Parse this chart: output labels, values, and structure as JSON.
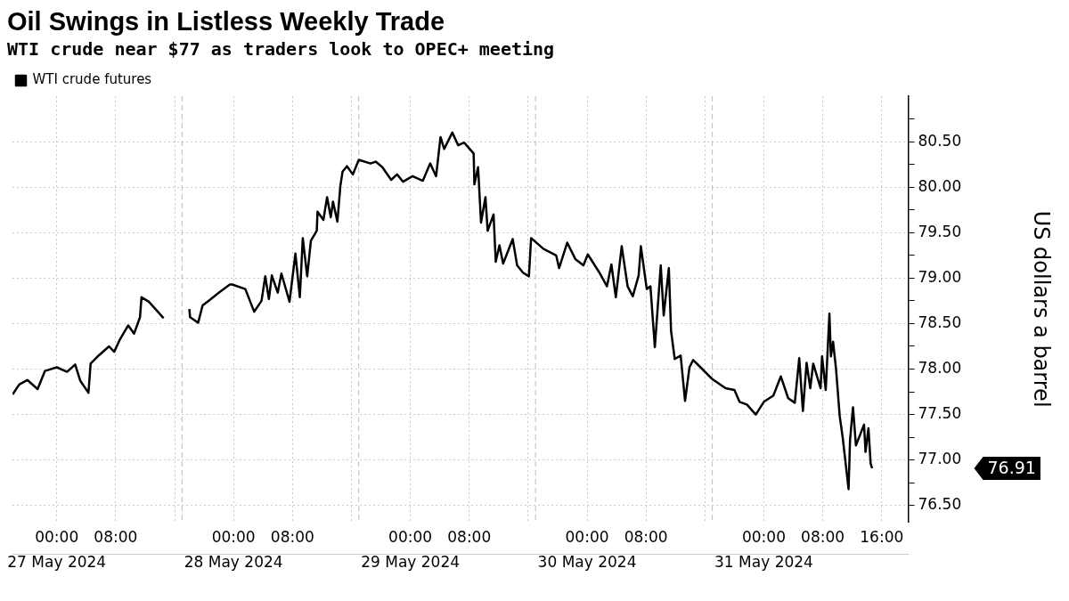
{
  "chart_data": {
    "type": "line",
    "title": "Oil Swings in Listless Weekly Trade",
    "subtitle": "WTI crude near $77 as traders look to OPEC+ meeting",
    "ylabel": "US dollars a barrel",
    "legend": "top left",
    "grid": true,
    "marker": "none",
    "line_style": "solid",
    "xlim": [
      "2024-05-26T18:00",
      "2024-05-31T19:36"
    ],
    "xticks": [
      {
        "value": "2024-05-27T00:00",
        "label": "00:00"
      },
      {
        "value": "2024-05-27T08:00",
        "label": "08:00"
      },
      {
        "value": "2024-05-27T16:00",
        "label": null
      },
      {
        "value": "2024-05-28T00:00",
        "label": "00:00"
      },
      {
        "value": "2024-05-28T08:00",
        "label": "08:00"
      },
      {
        "value": "2024-05-28T16:00",
        "label": null
      },
      {
        "value": "2024-05-29T00:00",
        "label": "00:00"
      },
      {
        "value": "2024-05-29T08:00",
        "label": "08:00"
      },
      {
        "value": "2024-05-29T16:00",
        "label": null
      },
      {
        "value": "2024-05-30T00:00",
        "label": "00:00"
      },
      {
        "value": "2024-05-30T08:00",
        "label": "08:00"
      },
      {
        "value": "2024-05-30T16:00",
        "label": null
      },
      {
        "value": "2024-05-31T00:00",
        "label": "00:00"
      },
      {
        "value": "2024-05-31T08:00",
        "label": "08:00"
      },
      {
        "value": "2024-05-31T16:00",
        "label": "16:00"
      }
    ],
    "x2lim": [
      "2024-05-26T18:00",
      "2024-05-31T19:36"
    ],
    "x2ticks": [
      {
        "value": "2024-05-27",
        "label": "27 May 2024"
      },
      {
        "value": "2024-05-28",
        "label": "28 May 2024"
      },
      {
        "value": "2024-05-29",
        "label": "29 May 2024"
      },
      {
        "value": "2024-05-30",
        "label": "30 May 2024"
      },
      {
        "value": "2024-05-31",
        "label": "31 May 2024"
      }
    ],
    "ylim": [
      76.32,
      81
    ],
    "yticks": [
      {
        "value": 76.5,
        "label": "76.50"
      },
      {
        "value": 76.75,
        "label": null
      },
      {
        "value": 77,
        "label": "77.00"
      },
      {
        "value": 77.25,
        "label": null
      },
      {
        "value": 77.5,
        "label": "77.50"
      },
      {
        "value": 77.75,
        "label": null
      },
      {
        "value": 78,
        "label": "78.00"
      },
      {
        "value": 78.25,
        "label": null
      },
      {
        "value": 78.5,
        "label": "78.50"
      },
      {
        "value": 78.75,
        "label": null
      },
      {
        "value": 79,
        "label": "79.00"
      },
      {
        "value": 79.25,
        "label": null
      },
      {
        "value": 79.5,
        "label": "79.50"
      },
      {
        "value": 79.75,
        "label": null
      },
      {
        "value": 80,
        "label": "80.00"
      },
      {
        "value": 80.25,
        "label": null
      },
      {
        "value": 80.5,
        "label": "80.50"
      },
      {
        "value": 80.75,
        "label": null
      }
    ],
    "ref_lines": [
      {
        "axis": "x",
        "value": "2024-05-27T17:00",
        "line_style": "dashed",
        "color": "#bbbbbb"
      },
      {
        "axis": "x",
        "value": "2024-05-28T17:00",
        "line_style": "dashed",
        "color": "#bbbbbb"
      },
      {
        "axis": "x",
        "value": "2024-05-29T17:00",
        "line_style": "dashed",
        "color": "#bbbbbb"
      },
      {
        "axis": "x",
        "value": "2024-05-30T17:00",
        "line_style": "dashed",
        "color": "#bbbbbb"
      }
    ],
    "annotations": [
      "76.91"
    ],
    "series": [
      {
        "name": "WTI crude futures",
        "color": "#000000",
        "x": [
          "2024-05-26T18:00",
          "2024-05-26T18:54",
          "2024-05-26T20:00",
          "2024-05-26T21:24",
          "2024-05-26T22:24",
          "2024-05-27T00:00",
          "2024-05-27T01:24",
          "2024-05-27T02:30",
          "2024-05-27T03:12",
          "2024-05-27T04:18",
          "2024-05-27T04:36",
          "2024-05-27T05:42",
          "2024-05-27T07:06",
          "2024-05-27T07:48",
          "2024-05-27T08:36",
          "2024-05-27T09:42",
          "2024-05-27T10:30",
          "2024-05-27T11:18",
          "2024-05-27T11:30",
          "2024-05-27T12:30",
          "2024-05-27T13:24",
          "2024-05-27T14:30",
          "2024-05-27T16:00",
          "2024-05-27T18:00",
          "2024-05-27T18:06",
          "2024-05-27T19:12",
          "2024-05-27T19:48",
          "2024-05-27T20:36",
          "2024-05-27T22:00",
          "2024-05-27T23:30",
          "2024-05-27T23:48",
          "2024-05-28T01:36",
          "2024-05-28T02:48",
          "2024-05-28T03:48",
          "2024-05-28T04:18",
          "2024-05-28T04:48",
          "2024-05-28T05:12",
          "2024-05-28T06:00",
          "2024-05-28T06:30",
          "2024-05-28T07:36",
          "2024-05-28T08:24",
          "2024-05-28T09:00",
          "2024-05-28T09:24",
          "2024-05-28T10:00",
          "2024-05-28T10:30",
          "2024-05-28T11:18",
          "2024-05-28T11:24",
          "2024-05-28T12:12",
          "2024-05-28T12:42",
          "2024-05-28T13:12",
          "2024-05-28T13:30",
          "2024-05-28T14:06",
          "2024-05-28T14:30",
          "2024-05-28T14:48",
          "2024-05-28T15:24",
          "2024-05-28T16:12",
          "2024-05-28T17:00",
          "2024-05-28T18:36",
          "2024-05-28T19:18",
          "2024-05-28T20:12",
          "2024-05-28T21:24",
          "2024-05-28T22:12",
          "2024-05-28T23:00",
          "2024-05-29T00:18",
          "2024-05-29T01:42",
          "2024-05-29T02:42",
          "2024-05-29T03:30",
          "2024-05-29T04:06",
          "2024-05-29T04:36",
          "2024-05-29T05:42",
          "2024-05-29T06:30",
          "2024-05-29T07:18",
          "2024-05-29T08:36",
          "2024-05-29T08:42",
          "2024-05-29T09:12",
          "2024-05-29T09:36",
          "2024-05-29T10:12",
          "2024-05-29T10:30",
          "2024-05-29T11:18",
          "2024-05-29T11:36",
          "2024-05-29T12:06",
          "2024-05-29T12:36",
          "2024-05-29T13:54",
          "2024-05-29T14:30",
          "2024-05-29T15:18",
          "2024-05-29T16:06",
          "2024-05-29T16:24",
          "2024-05-29T18:06",
          "2024-05-29T19:48",
          "2024-05-29T20:12",
          "2024-05-29T21:18",
          "2024-05-29T22:24",
          "2024-05-29T23:30",
          "2024-05-30T00:06",
          "2024-05-30T01:36",
          "2024-05-30T02:42",
          "2024-05-30T03:18",
          "2024-05-30T03:54",
          "2024-05-30T04:42",
          "2024-05-30T05:30",
          "2024-05-30T06:12",
          "2024-05-30T07:00",
          "2024-05-30T07:18",
          "2024-05-30T08:06",
          "2024-05-30T08:36",
          "2024-05-30T09:12",
          "2024-05-30T10:00",
          "2024-05-30T10:24",
          "2024-05-30T11:06",
          "2024-05-30T11:24",
          "2024-05-30T11:54",
          "2024-05-30T12:42",
          "2024-05-30T13:18",
          "2024-05-30T13:54",
          "2024-05-30T14:24",
          "2024-05-30T15:24",
          "2024-05-30T17:00",
          "2024-05-30T18:48",
          "2024-05-30T20:00",
          "2024-05-30T20:42",
          "2024-05-30T21:42",
          "2024-05-30T22:54",
          "2024-05-31T00:00",
          "2024-05-31T01:18",
          "2024-05-31T02:18",
          "2024-05-31T03:18",
          "2024-05-31T04:12",
          "2024-05-31T04:48",
          "2024-05-31T05:18",
          "2024-05-31T05:48",
          "2024-05-31T06:18",
          "2024-05-31T06:42",
          "2024-05-31T07:42",
          "2024-05-31T07:54",
          "2024-05-31T08:24",
          "2024-05-31T08:54",
          "2024-05-31T09:06",
          "2024-05-31T09:24",
          "2024-05-31T09:48",
          "2024-05-31T10:18",
          "2024-05-31T10:42",
          "2024-05-31T11:30",
          "2024-05-31T11:42",
          "2024-05-31T12:06",
          "2024-05-31T12:30",
          "2024-05-31T13:36",
          "2024-05-31T13:48",
          "2024-05-31T14:12",
          "2024-05-31T14:30",
          "2024-05-31T14:42"
        ],
        "values": [
          77.72,
          77.83,
          77.88,
          77.78,
          77.98,
          78.02,
          77.97,
          78.05,
          77.87,
          77.74,
          78.06,
          78.15,
          78.25,
          78.19,
          78.33,
          78.48,
          78.39,
          78.57,
          78.79,
          78.74,
          78.66,
          78.56,
          null,
          78.66,
          78.57,
          78.51,
          78.7,
          78.75,
          78.84,
          78.93,
          78.93,
          78.88,
          78.63,
          78.75,
          79.02,
          78.77,
          79.03,
          78.84,
          79.05,
          78.74,
          79.27,
          78.79,
          79.44,
          79.02,
          79.41,
          79.52,
          79.73,
          79.64,
          79.89,
          79.67,
          79.84,
          79.62,
          80.01,
          80.17,
          80.23,
          80.14,
          80.3,
          80.26,
          80.28,
          80.22,
          80.08,
          80.14,
          80.06,
          80.12,
          80.07,
          80.26,
          80.12,
          80.55,
          80.42,
          80.6,
          80.46,
          80.49,
          80.37,
          80.03,
          80.22,
          79.61,
          79.89,
          79.52,
          79.7,
          79.18,
          79.36,
          79.16,
          79.43,
          79.14,
          79.06,
          79.02,
          79.44,
          79.32,
          79.25,
          79.11,
          79.39,
          79.21,
          79.14,
          79.26,
          79.07,
          78.91,
          79.15,
          78.79,
          79.35,
          78.91,
          78.8,
          79.03,
          79.35,
          78.88,
          78.91,
          78.24,
          79.14,
          78.59,
          79.11,
          78.42,
          78.11,
          78.15,
          77.65,
          78.02,
          78.1,
          78.02,
          77.89,
          77.79,
          77.77,
          77.64,
          77.61,
          77.5,
          77.64,
          77.71,
          77.92,
          77.68,
          77.63,
          78.12,
          77.54,
          78.07,
          77.79,
          78.06,
          77.79,
          78.14,
          77.77,
          78.61,
          78.14,
          78.3,
          78.0,
          77.48,
          77.25,
          76.68,
          77.22,
          77.58,
          77.16,
          77.39,
          77.09,
          77.35,
          76.96,
          76.91
        ]
      }
    ]
  }
}
